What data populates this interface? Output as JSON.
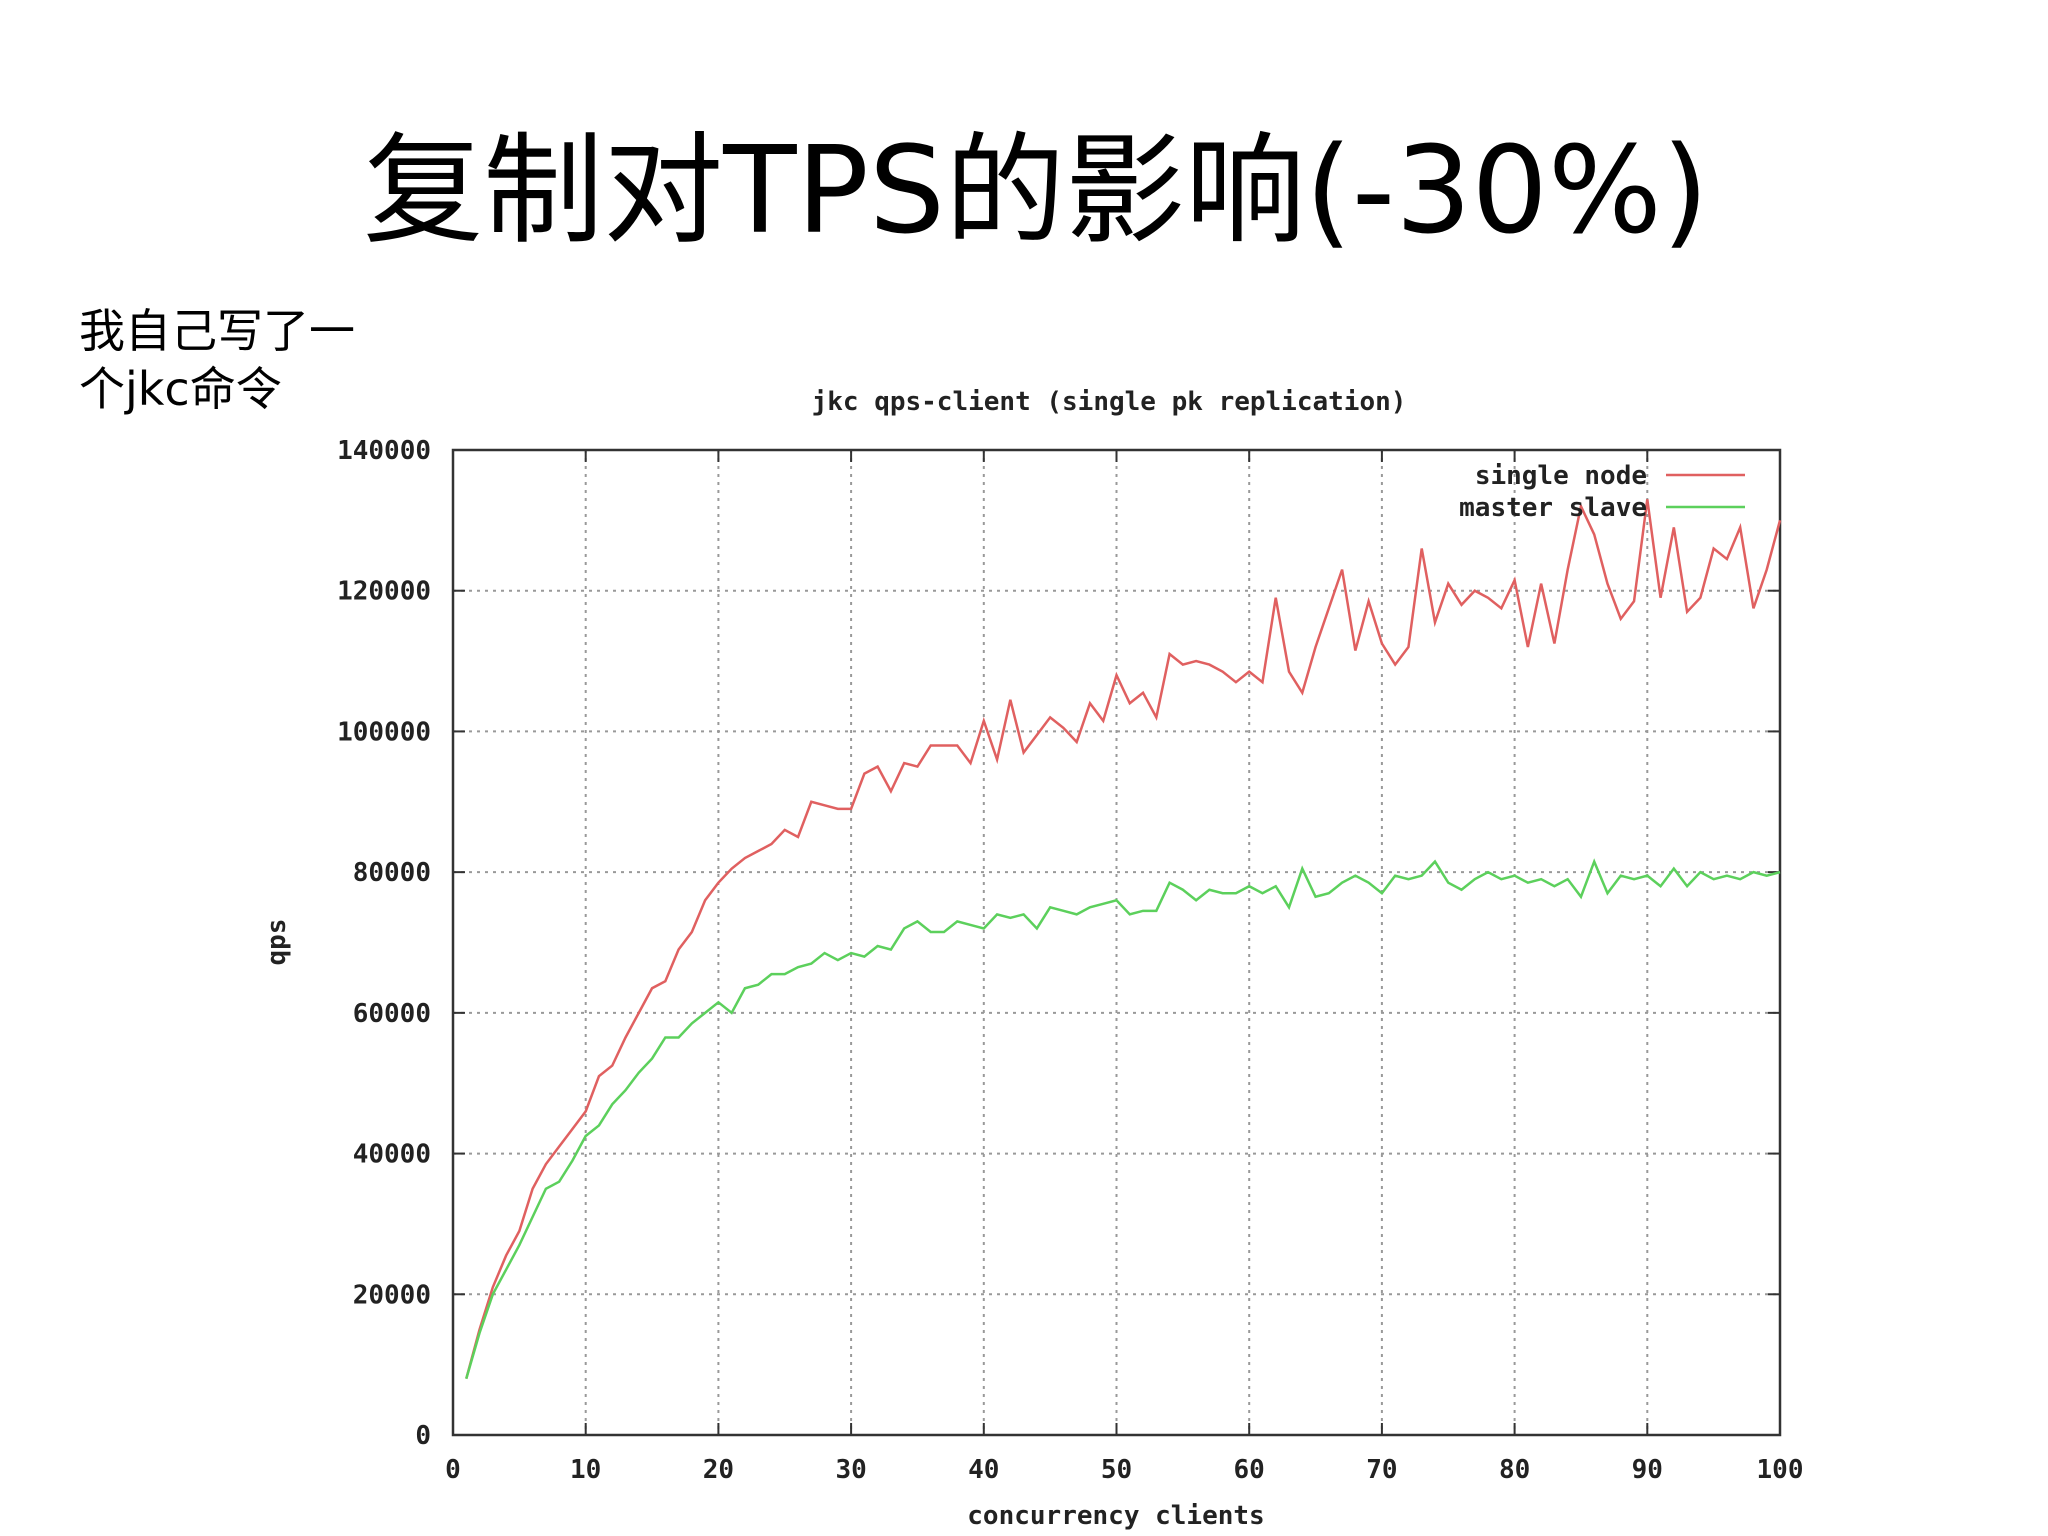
{
  "slide_title": "复制对TPS的影响(-30%)",
  "note": [
    "我自己写了一",
    "个jkc命令"
  ],
  "chart_data": {
    "type": "line",
    "title": "jkc qps-client (single pk replication)",
    "xlabel": "concurrency clients",
    "ylabel": "qps",
    "x": [
      1,
      2,
      3,
      4,
      5,
      6,
      7,
      8,
      9,
      10,
      11,
      12,
      13,
      14,
      15,
      16,
      17,
      18,
      19,
      20,
      21,
      22,
      23,
      24,
      25,
      26,
      27,
      28,
      29,
      30,
      31,
      32,
      33,
      34,
      35,
      36,
      37,
      38,
      39,
      40,
      41,
      42,
      43,
      44,
      45,
      46,
      47,
      48,
      49,
      50,
      51,
      52,
      53,
      54,
      55,
      56,
      57,
      58,
      59,
      60,
      61,
      62,
      63,
      64,
      65,
      66,
      67,
      68,
      69,
      70,
      71,
      72,
      73,
      74,
      75,
      76,
      77,
      78,
      79,
      80,
      81,
      82,
      83,
      84,
      85,
      86,
      87,
      88,
      89,
      90,
      91,
      92,
      93,
      94,
      95,
      96,
      97,
      98,
      99,
      100
    ],
    "series": [
      {
        "name": "single node",
        "color": "#e06060",
        "values": [
          8000,
          15000,
          21000,
          25500,
          29000,
          35000,
          38500,
          41000,
          43500,
          46000,
          51000,
          52500,
          56500,
          60000,
          63500,
          64500,
          69000,
          71500,
          76000,
          78500,
          80500,
          82000,
          83000,
          84000,
          86000,
          85000,
          90000,
          89500,
          89000,
          89000,
          94000,
          95000,
          91500,
          95500,
          95000,
          98000,
          98000,
          98000,
          95500,
          101500,
          96000,
          104500,
          97000,
          99500,
          102000,
          100500,
          98500,
          104000,
          101500,
          108000,
          104000,
          105500,
          102000,
          111000,
          109500,
          110000,
          109500,
          108500,
          107000,
          108500,
          107000,
          119000,
          108500,
          105500,
          112000,
          117500,
          123000,
          111500,
          118500,
          112500,
          109500,
          112000,
          126000,
          115500,
          121000,
          118000,
          120000,
          119000,
          117500,
          121500,
          112000,
          121000,
          112500,
          123000,
          132000,
          128000,
          121000,
          116000,
          118500,
          133000,
          119000,
          129000,
          117000,
          119000,
          126000,
          124500,
          129000,
          117500,
          123000,
          130000
        ]
      },
      {
        "name": "master slave",
        "color": "#5cd05c",
        "values": [
          8000,
          14500,
          20000,
          23500,
          27000,
          31000,
          35000,
          36000,
          39000,
          42500,
          44000,
          47000,
          49000,
          51500,
          53500,
          56500,
          56500,
          58500,
          60000,
          61500,
          60000,
          63500,
          64000,
          65500,
          65500,
          66500,
          67000,
          68500,
          67500,
          68500,
          68000,
          69500,
          69000,
          72000,
          73000,
          71500,
          71500,
          73000,
          72500,
          72000,
          74000,
          73500,
          74000,
          72000,
          75000,
          74500,
          74000,
          75000,
          75500,
          76000,
          74000,
          74500,
          74500,
          78500,
          77500,
          76000,
          77500,
          77000,
          77000,
          78000,
          77000,
          78000,
          75000,
          80500,
          76500,
          77000,
          78500,
          79500,
          78500,
          77000,
          79500,
          79000,
          79500,
          81500,
          78500,
          77500,
          79000,
          80000,
          79000,
          79500,
          78500,
          79000,
          78000,
          79000,
          76500,
          81500,
          77000,
          79500,
          79000,
          79500,
          78000,
          80500,
          78000,
          80000,
          79000,
          79500,
          79000,
          80000,
          79500,
          80000
        ]
      }
    ],
    "xlim": [
      0,
      100
    ],
    "xticks": [
      0,
      10,
      20,
      30,
      40,
      50,
      60,
      70,
      80,
      90,
      100
    ],
    "ylim": [
      0,
      140000
    ],
    "yticks": [
      0,
      20000,
      40000,
      60000,
      80000,
      100000,
      120000,
      140000
    ],
    "grid": true,
    "legend": "upper right"
  }
}
